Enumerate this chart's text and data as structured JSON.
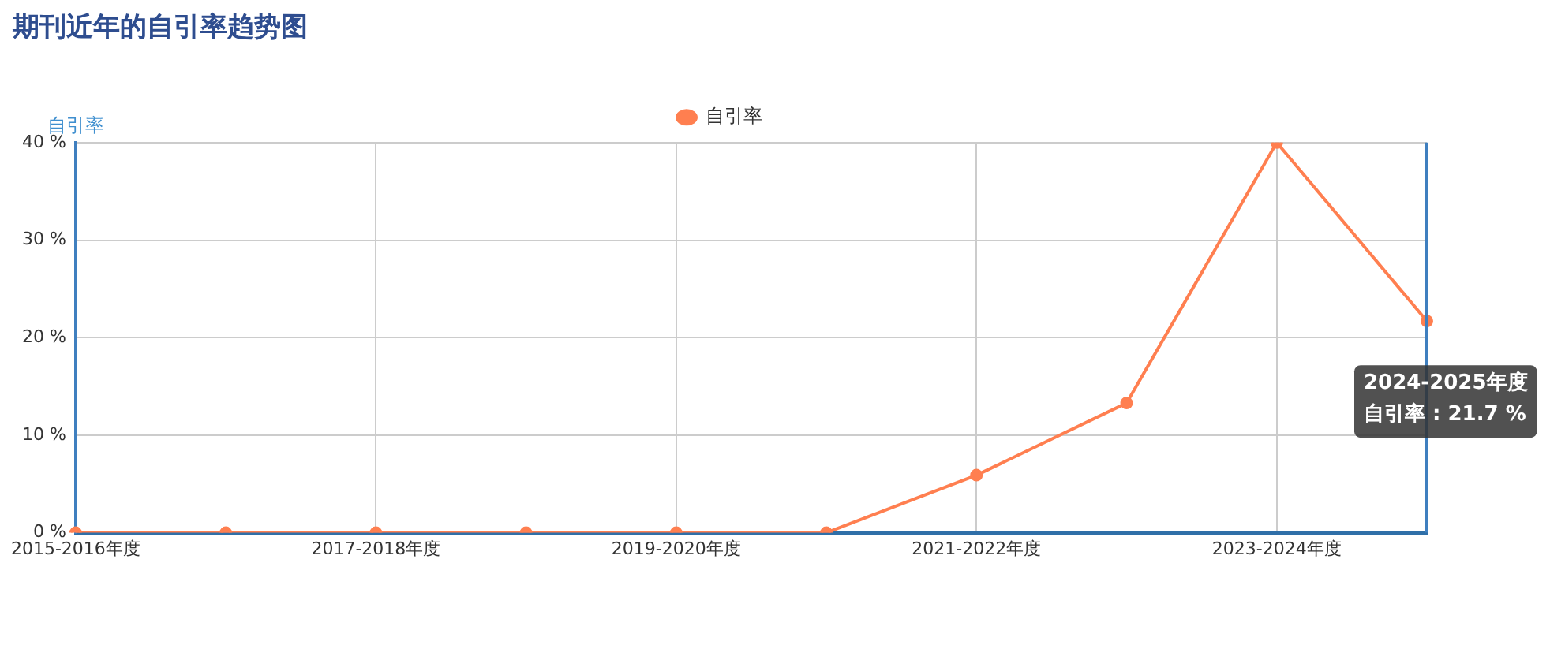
{
  "chart_data": {
    "type": "line",
    "title": "期刊近年的自引率趋势图",
    "ylabel": "自引率",
    "categories": [
      "2015-2016年度",
      null,
      "2017-2018年度",
      null,
      "2019-2020年度",
      null,
      "2021-2022年度",
      null,
      "2023-2024年度",
      null
    ],
    "series": [
      {
        "name": "自引率",
        "color": "#ff7f50",
        "values": [
          0,
          0,
          0,
          0,
          0,
          0,
          5.9,
          13.3,
          40,
          21.7
        ]
      }
    ],
    "ylim": [
      0,
      40
    ],
    "yticks": [
      {
        "value": 0,
        "label": "0 %"
      },
      {
        "value": 10,
        "label": "10 %"
      },
      {
        "value": 20,
        "label": "20 %"
      },
      {
        "value": 30,
        "label": "30 %"
      },
      {
        "value": 40,
        "label": "40 %"
      }
    ],
    "grid": true,
    "legend": "top",
    "marker": "circle",
    "line_style": "solid",
    "annotations": [
      "2024-2025年度",
      "自引率 : 21.7 %"
    ]
  }
}
